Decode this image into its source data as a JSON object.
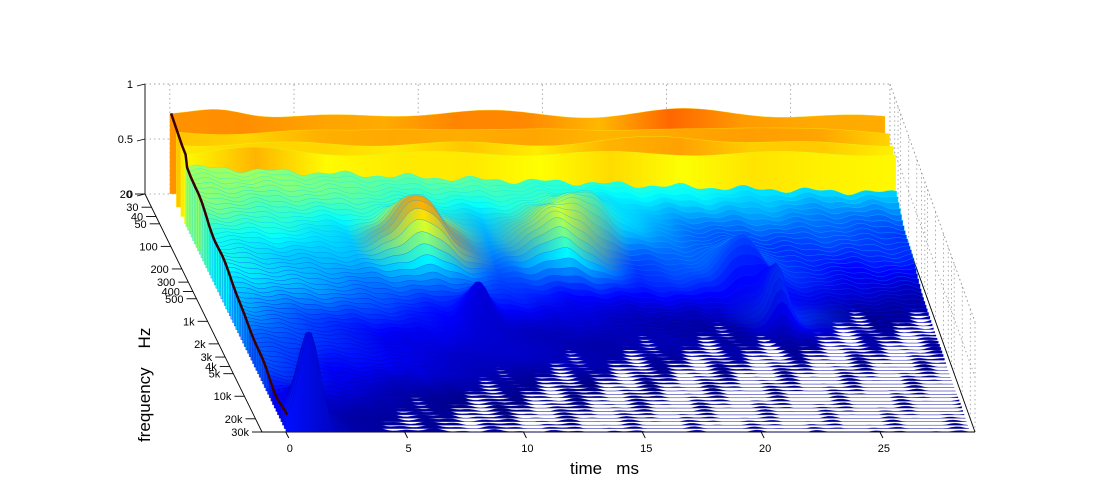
{
  "figure": {
    "background": "#ffffff",
    "colormap": "jet"
  },
  "chart_data": {
    "type": "waterfall",
    "title": "",
    "xlabel": "time   ms",
    "ylabel": "frequency    Hz",
    "zlabel": "",
    "x_ticks": [
      0,
      5,
      10,
      15,
      20,
      25
    ],
    "x_tick_labels": [
      "0",
      "5",
      "10",
      "15",
      "20",
      "25"
    ],
    "xlim": [
      -1,
      29
    ],
    "y_scale": "log",
    "y_ticks": [
      20,
      30,
      40,
      50,
      100,
      200,
      300,
      400,
      500,
      1000,
      2000,
      3000,
      4000,
      5000,
      10000,
      20000,
      30000
    ],
    "y_tick_labels": [
      "20",
      "30",
      "40",
      "50",
      "100",
      "200",
      "300",
      "400",
      "500",
      "1k",
      "2k",
      "3k",
      "4k",
      "5k",
      "10k",
      "20k",
      "30k"
    ],
    "ylim": [
      20,
      30000
    ],
    "z_ticks": [
      0,
      0.5,
      1
    ],
    "z_tick_labels": [
      "0",
      "0.5",
      "1"
    ],
    "zlim": [
      0,
      1
    ],
    "grid": true,
    "low_frequency_rows": [
      {
        "frequency": 20,
        "level": 0.7,
        "peaks": [
          {
            "time": 2.0,
            "height": 0.08,
            "width": 1.5
          },
          {
            "time": 12.0,
            "height": 0.05,
            "width": 3.0
          },
          {
            "time": 21.0,
            "height": 0.06,
            "width": 3.0
          }
        ]
      },
      {
        "frequency": 30,
        "level": 0.68,
        "peaks": [
          {
            "time": 9.0,
            "height": 0.05,
            "width": 2.0
          },
          {
            "time": 15.5,
            "height": 0.05,
            "width": 2.0
          },
          {
            "time": 23.0,
            "height": 0.06,
            "width": 2.5
          }
        ]
      },
      {
        "frequency": 40,
        "level": 0.66,
        "peaks": [
          {
            "time": 20.0,
            "height": 0.06,
            "width": 3.0
          }
        ]
      },
      {
        "frequency": 50,
        "level": 0.64,
        "peaks": [
          {
            "time": 2.5,
            "height": 0.04,
            "width": 2.0
          }
        ]
      }
    ],
    "resonances": [
      {
        "time": 1.0,
        "frequency": 30000,
        "height": 0.85,
        "width": 0.6
      },
      {
        "time": 8.5,
        "frequency": 250,
        "height": 0.45,
        "width": 1.2
      },
      {
        "time": 10.0,
        "frequency": 1500,
        "height": 0.35,
        "width": 0.6
      },
      {
        "time": 14.0,
        "frequency": 250,
        "height": 0.3,
        "width": 1.2
      },
      {
        "time": 15.5,
        "frequency": 150,
        "height": 0.3,
        "width": 1.5
      },
      {
        "time": 21.5,
        "frequency": 400,
        "height": 0.4,
        "width": 1.0
      },
      {
        "time": 22.5,
        "frequency": 1000,
        "height": 0.45,
        "width": 0.5
      }
    ],
    "decay": {
      "onset_time": 0.0,
      "level_at_20Hz": 0.62,
      "level_at_30kHz": 0.08
    }
  }
}
